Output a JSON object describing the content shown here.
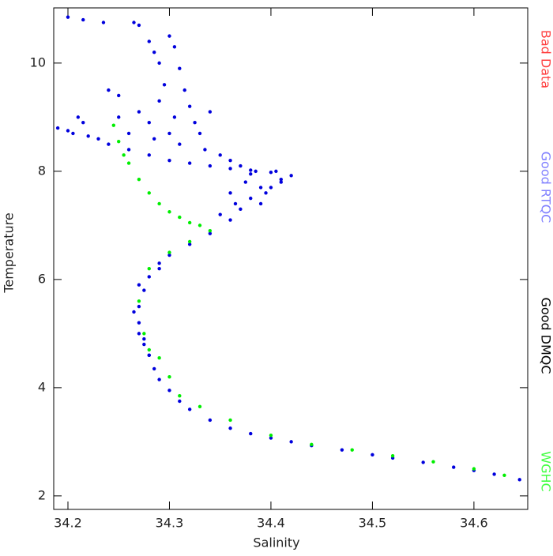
{
  "chart_data": {
    "type": "scatter",
    "x_label": "Salinity",
    "y_label": "Temperature",
    "xlim": [
      34.186,
      34.653
    ],
    "ylim": [
      1.75,
      11.02
    ],
    "xticks": [
      34.2,
      34.3,
      34.4,
      34.5,
      34.6
    ],
    "yticks": [
      2,
      4,
      6,
      8,
      10
    ],
    "series": [
      {
        "name": "Bad Data",
        "color": "#ff4040",
        "marker_color": "#ff0000",
        "x": [],
        "values": []
      },
      {
        "name": "Good RTQC",
        "color": "#8080ff",
        "marker_color": "#0000dd",
        "x": [
          34.645,
          34.62,
          34.6,
          34.58,
          34.55,
          34.52,
          34.5,
          34.47,
          34.44,
          34.42,
          34.4,
          34.38,
          34.36,
          34.34,
          34.32,
          34.31,
          34.3,
          34.29,
          34.285,
          34.28,
          34.275,
          34.27,
          34.27,
          34.275,
          34.28,
          34.29,
          34.3,
          34.32,
          34.34,
          34.36,
          34.37,
          34.38,
          34.39,
          34.41,
          34.42,
          34.4,
          34.38,
          34.36,
          34.34,
          34.32,
          34.3,
          34.28,
          34.26,
          34.24,
          34.22,
          34.2,
          34.19,
          34.2,
          34.215,
          34.235,
          34.265,
          34.27,
          34.28,
          34.285,
          34.29,
          34.3,
          34.305,
          34.31,
          34.295,
          34.29,
          34.305,
          34.315,
          34.32,
          34.325,
          34.3,
          34.28,
          34.27,
          34.25,
          34.24,
          34.25,
          34.26,
          34.285,
          34.31,
          34.33,
          34.34,
          34.335,
          34.35,
          34.36,
          34.37,
          34.385,
          34.375,
          34.36,
          34.365,
          34.35,
          34.215,
          34.21,
          34.23,
          34.205,
          34.27,
          34.265,
          34.27,
          34.275,
          34.28,
          34.29,
          34.41,
          34.405,
          34.395,
          34.39,
          34.38,
          34.4
        ],
        "values": [
          2.3,
          2.4,
          2.47,
          2.53,
          2.62,
          2.7,
          2.76,
          2.85,
          2.93,
          3.0,
          3.07,
          3.15,
          3.25,
          3.4,
          3.6,
          3.75,
          3.95,
          4.15,
          4.35,
          4.6,
          4.9,
          5.2,
          5.5,
          5.8,
          6.05,
          6.3,
          6.45,
          6.65,
          6.85,
          7.1,
          7.3,
          7.5,
          7.7,
          7.85,
          7.92,
          7.98,
          8.02,
          8.05,
          8.1,
          8.15,
          8.2,
          8.3,
          8.4,
          8.5,
          8.65,
          8.75,
          8.8,
          10.85,
          10.8,
          10.75,
          10.75,
          10.7,
          10.4,
          10.2,
          10.0,
          10.5,
          10.3,
          9.9,
          9.6,
          9.3,
          9.0,
          9.5,
          9.2,
          8.9,
          8.7,
          8.9,
          9.1,
          9.4,
          9.5,
          9.0,
          8.7,
          8.6,
          8.5,
          8.7,
          9.1,
          8.4,
          8.3,
          8.2,
          8.1,
          8.0,
          7.8,
          7.6,
          7.4,
          7.2,
          8.9,
          9.0,
          8.6,
          8.7,
          5.0,
          5.4,
          5.9,
          4.8,
          4.6,
          6.2,
          7.8,
          8.0,
          7.6,
          7.4,
          7.95,
          7.7
        ]
      },
      {
        "name": "Good DMQC",
        "color": "#000000",
        "marker_color": "#000000",
        "x": [],
        "values": []
      },
      {
        "name": "WGHC",
        "color": "#40ff40",
        "marker_color": "#00ee00",
        "x": [
          34.245,
          34.25,
          34.255,
          34.26,
          34.27,
          34.28,
          34.29,
          34.3,
          34.31,
          34.32,
          34.33,
          34.34,
          34.32,
          34.3,
          34.28,
          34.27,
          34.275,
          34.28,
          34.29,
          34.3,
          34.31,
          34.33,
          34.36,
          34.4,
          34.44,
          34.48,
          34.52,
          34.56,
          34.6,
          34.63
        ],
        "values": [
          8.85,
          8.55,
          8.3,
          8.15,
          7.85,
          7.6,
          7.4,
          7.25,
          7.15,
          7.05,
          7.0,
          6.9,
          6.7,
          6.5,
          6.2,
          5.6,
          5.0,
          4.7,
          4.55,
          4.2,
          3.85,
          3.65,
          3.4,
          3.12,
          2.95,
          2.85,
          2.74,
          2.63,
          2.5,
          2.38
        ]
      }
    ]
  }
}
